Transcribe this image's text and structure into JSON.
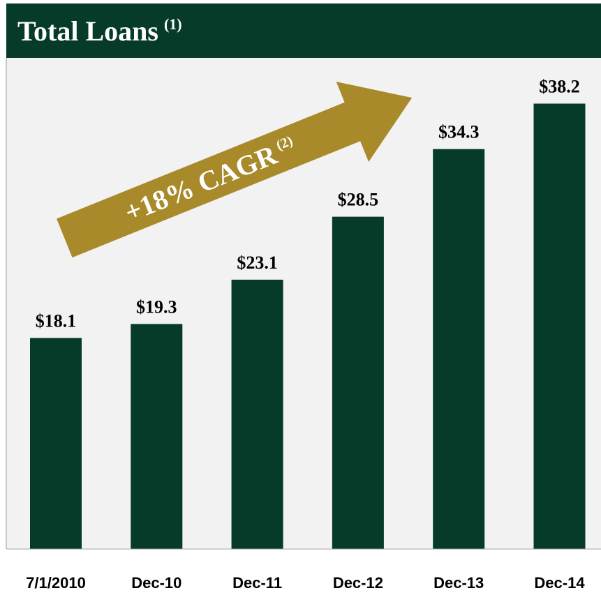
{
  "chart_data": {
    "type": "bar",
    "title": "Total Loans",
    "title_superscript": "(1)",
    "annotation": {
      "text": "+18% CAGR",
      "superscript": "(2)"
    },
    "categories": [
      "7/1/2010",
      "Dec-10",
      "Dec-11",
      "Dec-12",
      "Dec-13",
      "Dec-14"
    ],
    "values": [
      18.1,
      19.3,
      23.1,
      28.5,
      34.3,
      38.2
    ],
    "value_labels": [
      "$18.1",
      "$19.3",
      "$23.1",
      "$28.5",
      "$34.3",
      "$38.2"
    ],
    "color": "#063a29",
    "ylim": [
      0,
      42
    ]
  }
}
